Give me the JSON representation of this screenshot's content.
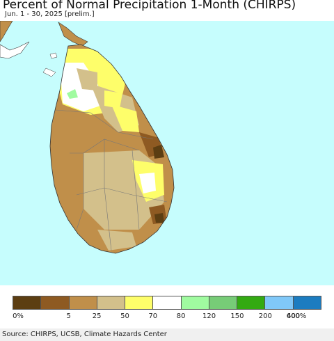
{
  "title": "Percent of Normal Precipitation 1-Month (CHIRPS)",
  "subtitle": "Jun. 1 - 30, 2025 [prelim.]",
  "map": {
    "ocean_color": "#c6fdfd",
    "region_shown": "Sri Lanka",
    "dominant_categories": [
      "25",
      "50",
      "70"
    ]
  },
  "legend": {
    "colors": [
      "#5c3e12",
      "#8e5a22",
      "#c08f4a",
      "#d3c08b",
      "#fefe6a",
      "#ffffff",
      "#a0fba0",
      "#77cc77",
      "#33aa12",
      "#80c8f8",
      "#1c7cc0"
    ],
    "labels": [
      "0%",
      "5",
      "25",
      "50",
      "70",
      "80",
      "120",
      "150",
      "200",
      "400",
      "600%"
    ]
  },
  "source": "Source: CHIRPS, UCSB, Climate Hazards Center"
}
